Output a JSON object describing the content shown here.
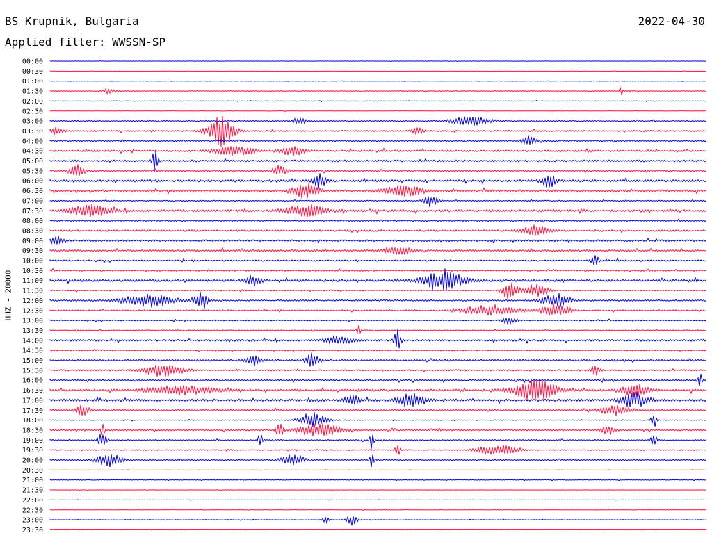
{
  "header": {
    "station": "BS Krupnik, Bulgaria",
    "date": "2022-04-30",
    "filter": "Applied filter: WWSSN-SP"
  },
  "colors": {
    "even_trace": "#0000d8",
    "odd_trace": "#ff1040",
    "text": "#000000"
  },
  "chart_data": {
    "type": "line",
    "title": "",
    "xlabel": "",
    "ylabel": "HHZ - 20000",
    "rows": [
      {
        "label": "00:00",
        "activity": 0.1,
        "events": []
      },
      {
        "label": "00:30",
        "activity": 0.1,
        "events": []
      },
      {
        "label": "01:00",
        "activity": 0.1,
        "events": []
      },
      {
        "label": "01:30",
        "activity": 0.2,
        "events": [
          {
            "x": 0.09,
            "w": 0.01,
            "a": 0.3
          },
          {
            "x": 0.87,
            "w": 0.002,
            "a": 0.8
          }
        ]
      },
      {
        "label": "02:00",
        "activity": 0.15,
        "events": []
      },
      {
        "label": "02:30",
        "activity": 0.1,
        "events": []
      },
      {
        "label": "03:00",
        "activity": 0.3,
        "events": [
          {
            "x": 0.38,
            "w": 0.01,
            "a": 0.4
          },
          {
            "x": 0.64,
            "w": 0.03,
            "a": 0.5
          }
        ]
      },
      {
        "label": "03:30",
        "activity": 0.4,
        "events": [
          {
            "x": 0.26,
            "w": 0.02,
            "a": 1.6
          },
          {
            "x": 0.01,
            "w": 0.01,
            "a": 0.4
          },
          {
            "x": 0.56,
            "w": 0.01,
            "a": 0.4
          }
        ]
      },
      {
        "label": "04:00",
        "activity": 0.4,
        "events": [
          {
            "x": 0.73,
            "w": 0.01,
            "a": 0.6
          }
        ]
      },
      {
        "label": "04:30",
        "activity": 0.5,
        "events": [
          {
            "x": 0.28,
            "w": 0.03,
            "a": 0.5
          },
          {
            "x": 0.37,
            "w": 0.02,
            "a": 0.5
          }
        ]
      },
      {
        "label": "05:00",
        "activity": 0.5,
        "events": [
          {
            "x": 0.16,
            "w": 0.004,
            "a": 1.5
          }
        ]
      },
      {
        "label": "05:30",
        "activity": 0.5,
        "events": [
          {
            "x": 0.04,
            "w": 0.01,
            "a": 0.8
          },
          {
            "x": 0.35,
            "w": 0.01,
            "a": 0.6
          }
        ]
      },
      {
        "label": "06:00",
        "activity": 0.6,
        "events": [
          {
            "x": 0.41,
            "w": 0.01,
            "a": 1.0
          },
          {
            "x": 0.76,
            "w": 0.01,
            "a": 0.8
          }
        ]
      },
      {
        "label": "06:30",
        "activity": 0.6,
        "events": [
          {
            "x": 0.39,
            "w": 0.02,
            "a": 0.8
          },
          {
            "x": 0.54,
            "w": 0.03,
            "a": 0.6
          }
        ]
      },
      {
        "label": "07:00",
        "activity": 0.3,
        "events": [
          {
            "x": 0.58,
            "w": 0.01,
            "a": 0.7
          }
        ]
      },
      {
        "label": "07:30",
        "activity": 0.6,
        "events": [
          {
            "x": 0.06,
            "w": 0.03,
            "a": 0.7
          },
          {
            "x": 0.39,
            "w": 0.03,
            "a": 0.7
          }
        ]
      },
      {
        "label": "08:00",
        "activity": 0.4,
        "events": []
      },
      {
        "label": "08:30",
        "activity": 0.5,
        "events": [
          {
            "x": 0.74,
            "w": 0.02,
            "a": 0.6
          }
        ]
      },
      {
        "label": "09:00",
        "activity": 0.5,
        "events": [
          {
            "x": 0.01,
            "w": 0.01,
            "a": 0.6
          }
        ]
      },
      {
        "label": "09:30",
        "activity": 0.5,
        "events": [
          {
            "x": 0.53,
            "w": 0.02,
            "a": 0.5
          }
        ]
      },
      {
        "label": "10:00",
        "activity": 0.4,
        "events": [
          {
            "x": 0.83,
            "w": 0.005,
            "a": 0.8
          }
        ]
      },
      {
        "label": "10:30",
        "activity": 0.4,
        "events": []
      },
      {
        "label": "11:00",
        "activity": 0.6,
        "events": [
          {
            "x": 0.6,
            "w": 0.03,
            "a": 1.1
          },
          {
            "x": 0.31,
            "w": 0.01,
            "a": 0.7
          }
        ]
      },
      {
        "label": "11:30",
        "activity": 0.3,
        "events": [
          {
            "x": 0.7,
            "w": 0.01,
            "a": 1.4
          },
          {
            "x": 0.74,
            "w": 0.02,
            "a": 0.7
          }
        ]
      },
      {
        "label": "12:00",
        "activity": 0.4,
        "events": [
          {
            "x": 0.15,
            "w": 0.04,
            "a": 0.7
          },
          {
            "x": 0.23,
            "w": 0.01,
            "a": 1.0
          },
          {
            "x": 0.77,
            "w": 0.02,
            "a": 0.8
          }
        ]
      },
      {
        "label": "12:30",
        "activity": 0.4,
        "events": [
          {
            "x": 0.67,
            "w": 0.04,
            "a": 0.6
          },
          {
            "x": 0.77,
            "w": 0.02,
            "a": 0.8
          }
        ]
      },
      {
        "label": "13:00",
        "activity": 0.3,
        "events": [
          {
            "x": 0.7,
            "w": 0.01,
            "a": 0.5
          }
        ]
      },
      {
        "label": "13:30",
        "activity": 0.3,
        "events": [
          {
            "x": 0.47,
            "w": 0.003,
            "a": 0.6
          }
        ]
      },
      {
        "label": "14:00",
        "activity": 0.5,
        "events": [
          {
            "x": 0.53,
            "w": 0.005,
            "a": 1.3
          },
          {
            "x": 0.44,
            "w": 0.02,
            "a": 0.5
          }
        ]
      },
      {
        "label": "14:30",
        "activity": 0.3,
        "events": []
      },
      {
        "label": "15:00",
        "activity": 0.5,
        "events": [
          {
            "x": 0.4,
            "w": 0.01,
            "a": 0.8
          },
          {
            "x": 0.31,
            "w": 0.01,
            "a": 0.6
          }
        ]
      },
      {
        "label": "15:30",
        "activity": 0.4,
        "events": [
          {
            "x": 0.17,
            "w": 0.03,
            "a": 0.7
          },
          {
            "x": 0.83,
            "w": 0.005,
            "a": 0.7
          }
        ]
      },
      {
        "label": "16:00",
        "activity": 0.5,
        "events": [
          {
            "x": 0.99,
            "w": 0.003,
            "a": 0.9
          }
        ]
      },
      {
        "label": "16:30",
        "activity": 0.6,
        "events": [
          {
            "x": 0.74,
            "w": 0.03,
            "a": 1.3
          },
          {
            "x": 0.2,
            "w": 0.05,
            "a": 0.5
          },
          {
            "x": 0.89,
            "w": 0.02,
            "a": 0.7
          }
        ]
      },
      {
        "label": "17:00",
        "activity": 0.6,
        "events": [
          {
            "x": 0.55,
            "w": 0.02,
            "a": 0.8
          },
          {
            "x": 0.89,
            "w": 0.02,
            "a": 0.9
          },
          {
            "x": 0.46,
            "w": 0.01,
            "a": 0.7
          }
        ]
      },
      {
        "label": "17:30",
        "activity": 0.5,
        "events": [
          {
            "x": 0.05,
            "w": 0.01,
            "a": 0.6
          },
          {
            "x": 0.86,
            "w": 0.02,
            "a": 0.6
          }
        ]
      },
      {
        "label": "18:00",
        "activity": 0.2,
        "events": [
          {
            "x": 0.4,
            "w": 0.02,
            "a": 0.9
          },
          {
            "x": 0.92,
            "w": 0.004,
            "a": 0.8
          }
        ]
      },
      {
        "label": "18:30",
        "activity": 0.4,
        "events": [
          {
            "x": 0.35,
            "w": 0.005,
            "a": 1.0
          },
          {
            "x": 0.41,
            "w": 0.03,
            "a": 0.8
          },
          {
            "x": 0.08,
            "w": 0.003,
            "a": 0.8
          },
          {
            "x": 0.85,
            "w": 0.01,
            "a": 0.6
          }
        ]
      },
      {
        "label": "19:00",
        "activity": 0.3,
        "events": [
          {
            "x": 0.08,
            "w": 0.006,
            "a": 1.0
          },
          {
            "x": 0.32,
            "w": 0.003,
            "a": 1.0
          },
          {
            "x": 0.49,
            "w": 0.003,
            "a": 1.0
          },
          {
            "x": 0.92,
            "w": 0.004,
            "a": 0.9
          }
        ]
      },
      {
        "label": "19:30",
        "activity": 0.3,
        "events": [
          {
            "x": 0.68,
            "w": 0.03,
            "a": 0.6
          },
          {
            "x": 0.53,
            "w": 0.004,
            "a": 0.7
          }
        ]
      },
      {
        "label": "20:00",
        "activity": 0.3,
        "events": [
          {
            "x": 0.09,
            "w": 0.02,
            "a": 0.7
          },
          {
            "x": 0.37,
            "w": 0.02,
            "a": 0.6
          },
          {
            "x": 0.49,
            "w": 0.003,
            "a": 0.9
          }
        ]
      },
      {
        "label": "20:30",
        "activity": 0.1,
        "events": []
      },
      {
        "label": "21:00",
        "activity": 0.15,
        "events": []
      },
      {
        "label": "21:30",
        "activity": 0.1,
        "events": []
      },
      {
        "label": "22:00",
        "activity": 0.08,
        "events": []
      },
      {
        "label": "22:30",
        "activity": 0.1,
        "events": []
      },
      {
        "label": "23:00",
        "activity": 0.15,
        "events": [
          {
            "x": 0.42,
            "w": 0.004,
            "a": 0.7
          },
          {
            "x": 0.46,
            "w": 0.008,
            "a": 0.7
          }
        ]
      },
      {
        "label": "23:30",
        "activity": 0.1,
        "events": []
      }
    ]
  }
}
